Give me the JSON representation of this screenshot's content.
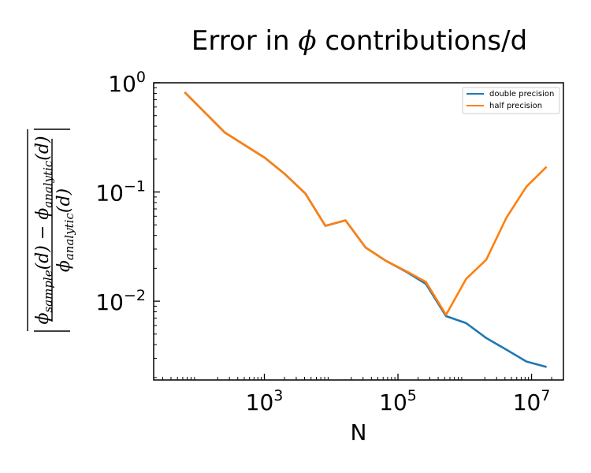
{
  "chart_data": {
    "type": "line",
    "title": {
      "prefix": "Error in ",
      "symbol": "ϕ",
      "suffix": " contributions/d"
    },
    "xlabel": "N",
    "ylabel": {
      "numerator_left": "ϕ",
      "numerator_left_sub": "sample",
      "numerator_mid": "(d) − ϕ",
      "numerator_right_sub": "analytic",
      "numerator_right": "(d)",
      "denominator": "ϕ",
      "denominator_sub": "analytic",
      "denominator_tail": "(d)"
    },
    "x_scale": "log",
    "y_scale": "log",
    "xlim": [
      22,
      30000000
    ],
    "ylim": [
      0.0019,
      1.0
    ],
    "x_ticks": [
      {
        "value": 1000,
        "base": "10",
        "exp": "3"
      },
      {
        "value": 100000,
        "base": "10",
        "exp": "5"
      },
      {
        "value": 10000000,
        "base": "10",
        "exp": "7"
      }
    ],
    "y_ticks": [
      {
        "value": 1,
        "base": "10",
        "exp": "0"
      },
      {
        "value": 0.1,
        "base": "10",
        "exp": "−1"
      },
      {
        "value": 0.01,
        "base": "10",
        "exp": "−2"
      }
    ],
    "tick_direction": "in",
    "legend_placement": "top-right",
    "grid": false,
    "series": [
      {
        "name": "double precision",
        "color": "#1f77b4",
        "x": [
          64,
          256,
          1024,
          2048,
          4096,
          8192,
          16384,
          32768,
          65536,
          131072,
          262144,
          524288,
          1048576,
          2097152,
          4194304,
          8388608,
          16777216
        ],
        "y": [
          0.82,
          0.35,
          0.205,
          0.145,
          0.097,
          0.049,
          0.055,
          0.031,
          0.0235,
          0.0187,
          0.0144,
          0.0073,
          0.0063,
          0.0046,
          0.0036,
          0.0028,
          0.0025
        ]
      },
      {
        "name": "half precision",
        "color": "#ff7f0e",
        "x": [
          64,
          256,
          1024,
          2048,
          4096,
          8192,
          16384,
          32768,
          65536,
          131072,
          262144,
          524288,
          1048576,
          2097152,
          4194304,
          8388608,
          16777216
        ],
        "y": [
          0.82,
          0.35,
          0.205,
          0.145,
          0.097,
          0.049,
          0.055,
          0.031,
          0.0235,
          0.0189,
          0.015,
          0.0075,
          0.016,
          0.024,
          0.058,
          0.112,
          0.17
        ]
      }
    ]
  }
}
